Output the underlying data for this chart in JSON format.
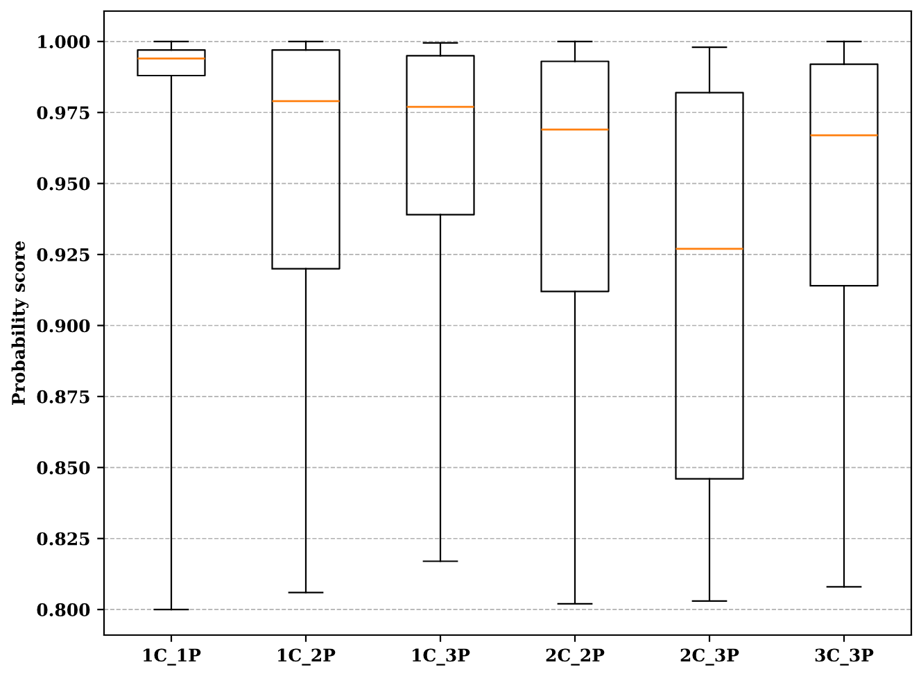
{
  "chart_data": {
    "type": "box",
    "ylabel": "Probability score",
    "categories": [
      "1C_1P",
      "1C_2P",
      "1C_3P",
      "2C_2P",
      "2C_3P",
      "3C_3P"
    ],
    "boxes": [
      {
        "low": 0.8,
        "q1": 0.988,
        "median": 0.994,
        "q3": 0.997,
        "high": 1.0
      },
      {
        "low": 0.806,
        "q1": 0.92,
        "median": 0.979,
        "q3": 0.997,
        "high": 1.0
      },
      {
        "low": 0.817,
        "q1": 0.939,
        "median": 0.977,
        "q3": 0.995,
        "high": 0.9995
      },
      {
        "low": 0.802,
        "q1": 0.912,
        "median": 0.969,
        "q3": 0.993,
        "high": 1.0
      },
      {
        "low": 0.803,
        "q1": 0.846,
        "median": 0.927,
        "q3": 0.982,
        "high": 0.998
      },
      {
        "low": 0.808,
        "q1": 0.914,
        "median": 0.967,
        "q3": 0.992,
        "high": 1.0
      }
    ],
    "color": "#000000",
    "ylim": [
      0.791,
      1.0107
    ],
    "yticks": [
      {
        "value": 0.8,
        "label": "0.800"
      },
      {
        "value": 0.825,
        "label": "0.825"
      },
      {
        "value": 0.85,
        "label": "0.850"
      },
      {
        "value": 0.875,
        "label": "0.875"
      },
      {
        "value": 0.9,
        "label": "0.900"
      },
      {
        "value": 0.925,
        "label": "0.925"
      },
      {
        "value": 0.95,
        "label": "0.950"
      },
      {
        "value": 0.975,
        "label": "0.975"
      },
      {
        "value": 1.0,
        "label": "1.000"
      }
    ],
    "grid": "y"
  }
}
